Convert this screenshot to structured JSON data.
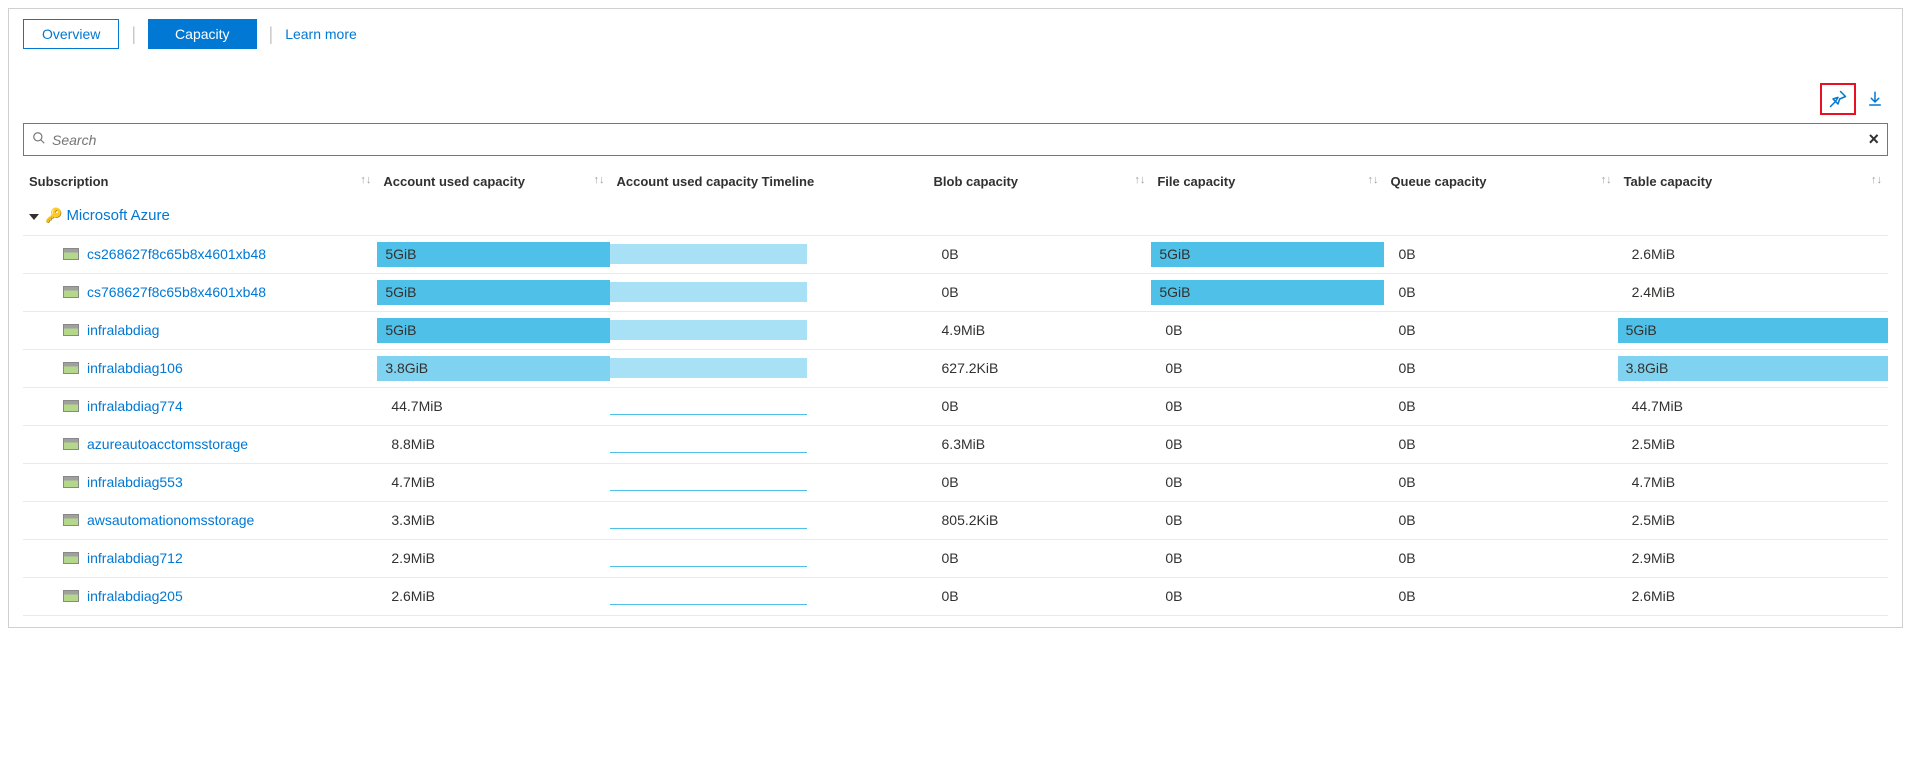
{
  "tabs": {
    "overview": "Overview",
    "capacity": "Capacity",
    "learn_more": "Learn more"
  },
  "search": {
    "placeholder": "Search"
  },
  "colors": {
    "link": "#0078d4",
    "bar_dark": "#4fc0e8",
    "bar_mid": "#7fd3f0",
    "bar_light": "#a8e0f5",
    "timeline_line": "#4fc0e8",
    "pin_border": "#e81123"
  },
  "columns": [
    {
      "key": "subscription",
      "label": "Subscription",
      "sortable": true
    },
    {
      "key": "account_used",
      "label": "Account used capacity",
      "sortable": true
    },
    {
      "key": "timeline",
      "label": "Account used capacity Timeline",
      "sortable": false
    },
    {
      "key": "blob",
      "label": "Blob capacity",
      "sortable": true
    },
    {
      "key": "file",
      "label": "File capacity",
      "sortable": true
    },
    {
      "key": "queue",
      "label": "Queue capacity",
      "sortable": true
    },
    {
      "key": "table",
      "label": "Table capacity",
      "sortable": true
    }
  ],
  "group": {
    "label": "Microsoft Azure"
  },
  "rows": [
    {
      "name": "cs268627f8c65b8x4601xb48",
      "account_used": {
        "text": "5GiB",
        "fill": 1.0,
        "shade": "dark"
      },
      "timeline": {
        "type": "bar",
        "fill": 0.62,
        "shade": "light"
      },
      "blob": {
        "text": "0B",
        "fill": 0
      },
      "file": {
        "text": "5GiB",
        "fill": 1.0,
        "shade": "dark"
      },
      "queue": {
        "text": "0B",
        "fill": 0
      },
      "table": {
        "text": "2.6MiB",
        "fill": 0
      }
    },
    {
      "name": "cs768627f8c65b8x4601xb48",
      "account_used": {
        "text": "5GiB",
        "fill": 1.0,
        "shade": "dark"
      },
      "timeline": {
        "type": "bar",
        "fill": 0.62,
        "shade": "light"
      },
      "blob": {
        "text": "0B",
        "fill": 0
      },
      "file": {
        "text": "5GiB",
        "fill": 1.0,
        "shade": "dark"
      },
      "queue": {
        "text": "0B",
        "fill": 0
      },
      "table": {
        "text": "2.4MiB",
        "fill": 0
      }
    },
    {
      "name": "infralabdiag",
      "account_used": {
        "text": "5GiB",
        "fill": 1.0,
        "shade": "dark"
      },
      "timeline": {
        "type": "bar",
        "fill": 0.62,
        "shade": "light"
      },
      "blob": {
        "text": "4.9MiB",
        "fill": 0
      },
      "file": {
        "text": "0B",
        "fill": 0
      },
      "queue": {
        "text": "0B",
        "fill": 0
      },
      "table": {
        "text": "5GiB",
        "fill": 1.0,
        "shade": "dark"
      }
    },
    {
      "name": "infralabdiag106",
      "account_used": {
        "text": "3.8GiB",
        "fill": 1.0,
        "shade": "mid"
      },
      "timeline": {
        "type": "bar",
        "fill": 0.62,
        "shade": "light"
      },
      "blob": {
        "text": "627.2KiB",
        "fill": 0
      },
      "file": {
        "text": "0B",
        "fill": 0
      },
      "queue": {
        "text": "0B",
        "fill": 0
      },
      "table": {
        "text": "3.8GiB",
        "fill": 1.0,
        "shade": "mid"
      }
    },
    {
      "name": "infralabdiag774",
      "account_used": {
        "text": "44.7MiB",
        "fill": 0
      },
      "timeline": {
        "type": "line",
        "fill": 0.62
      },
      "blob": {
        "text": "0B",
        "fill": 0
      },
      "file": {
        "text": "0B",
        "fill": 0
      },
      "queue": {
        "text": "0B",
        "fill": 0
      },
      "table": {
        "text": "44.7MiB",
        "fill": 0
      }
    },
    {
      "name": "azureautoacctomsstorage",
      "account_used": {
        "text": "8.8MiB",
        "fill": 0
      },
      "timeline": {
        "type": "line",
        "fill": 0.62
      },
      "blob": {
        "text": "6.3MiB",
        "fill": 0
      },
      "file": {
        "text": "0B",
        "fill": 0
      },
      "queue": {
        "text": "0B",
        "fill": 0
      },
      "table": {
        "text": "2.5MiB",
        "fill": 0
      }
    },
    {
      "name": "infralabdiag553",
      "account_used": {
        "text": "4.7MiB",
        "fill": 0
      },
      "timeline": {
        "type": "line",
        "fill": 0.62
      },
      "blob": {
        "text": "0B",
        "fill": 0
      },
      "file": {
        "text": "0B",
        "fill": 0
      },
      "queue": {
        "text": "0B",
        "fill": 0
      },
      "table": {
        "text": "4.7MiB",
        "fill": 0
      }
    },
    {
      "name": "awsautomationomsstorage",
      "account_used": {
        "text": "3.3MiB",
        "fill": 0
      },
      "timeline": {
        "type": "line",
        "fill": 0.62
      },
      "blob": {
        "text": "805.2KiB",
        "fill": 0
      },
      "file": {
        "text": "0B",
        "fill": 0
      },
      "queue": {
        "text": "0B",
        "fill": 0
      },
      "table": {
        "text": "2.5MiB",
        "fill": 0
      }
    },
    {
      "name": "infralabdiag712",
      "account_used": {
        "text": "2.9MiB",
        "fill": 0
      },
      "timeline": {
        "type": "line",
        "fill": 0.62
      },
      "blob": {
        "text": "0B",
        "fill": 0
      },
      "file": {
        "text": "0B",
        "fill": 0
      },
      "queue": {
        "text": "0B",
        "fill": 0
      },
      "table": {
        "text": "2.9MiB",
        "fill": 0
      }
    },
    {
      "name": "infralabdiag205",
      "account_used": {
        "text": "2.6MiB",
        "fill": 0
      },
      "timeline": {
        "type": "line",
        "fill": 0.62
      },
      "blob": {
        "text": "0B",
        "fill": 0
      },
      "file": {
        "text": "0B",
        "fill": 0
      },
      "queue": {
        "text": "0B",
        "fill": 0
      },
      "table": {
        "text": "2.6MiB",
        "fill": 0
      }
    }
  ]
}
